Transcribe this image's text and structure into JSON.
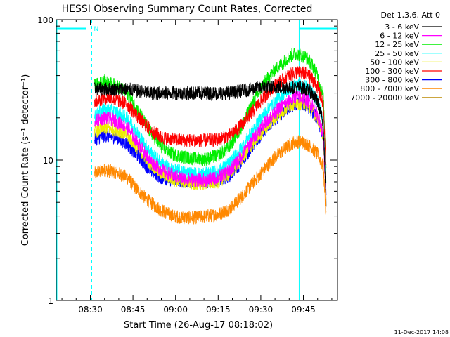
{
  "chart_data": {
    "type": "line",
    "title": "HESSI Observing Summary Count Rates, Corrected",
    "xlabel": "Start Time (26-Aug-17 08:18:02)",
    "ylabel": "Corrected Count Rate (s⁻¹ detector⁻¹)",
    "yscale": "log",
    "ylim": [
      1,
      100
    ],
    "xlim_min": [
      498,
      597
    ],
    "x_ticks": [
      {
        "min": 510,
        "label": "08:30"
      },
      {
        "min": 525,
        "label": "08:45"
      },
      {
        "min": 540,
        "label": "09:00"
      },
      {
        "min": 555,
        "label": "09:15"
      },
      {
        "min": 570,
        "label": "09:30"
      },
      {
        "min": 585,
        "label": "09:45"
      }
    ],
    "y_ticks": [
      {
        "value": 1,
        "label": "1"
      },
      {
        "value": 10,
        "label": "10"
      },
      {
        "value": 100,
        "label": "100"
      }
    ],
    "legend_header": "Det 1,3,6, Att 0",
    "legend_position": "right",
    "data_start_min": 511.5,
    "data_end_min": 593,
    "series": [
      {
        "name": "3 - 6 keV",
        "color": "#000000",
        "x": [
          511.5,
          515,
          519,
          523,
          527,
          531,
          535,
          539,
          543,
          547,
          551,
          555,
          559,
          563,
          567,
          571,
          575,
          579,
          581,
          582,
          584,
          586,
          588,
          590,
          592,
          593
        ],
        "y": [
          32,
          32,
          32,
          32,
          31,
          30,
          30,
          30,
          30,
          30,
          30,
          30,
          30,
          31,
          32,
          33,
          33,
          33,
          33,
          33,
          33,
          32,
          30,
          26,
          18,
          5
        ]
      },
      {
        "name": "6 - 12 keV",
        "color": "#ff00ff",
        "x": [
          511.5,
          515,
          519,
          523,
          527,
          531,
          535,
          539,
          543,
          547,
          551,
          555,
          559,
          563,
          567,
          571,
          575,
          579,
          581,
          582,
          584,
          586,
          588,
          590,
          592,
          593
        ],
        "y": [
          19,
          20,
          19,
          17,
          13,
          10,
          8.5,
          7.8,
          7.4,
          7.2,
          7.2,
          7.5,
          8.5,
          10.5,
          14,
          18,
          22,
          25.5,
          27,
          28,
          28,
          27,
          25,
          21,
          15,
          5
        ]
      },
      {
        "name": "12 - 25 keV",
        "color": "#00ee00",
        "x": [
          511.5,
          515,
          519,
          523,
          527,
          531,
          535,
          539,
          543,
          547,
          551,
          555,
          559,
          563,
          567,
          571,
          575,
          579,
          581,
          582,
          584,
          586,
          588,
          590,
          592,
          593
        ],
        "y": [
          34,
          36,
          34,
          30,
          22,
          16,
          12.5,
          11,
          10.5,
          10.2,
          10.2,
          10.8,
          12.5,
          17,
          25,
          35,
          44,
          52,
          56,
          57,
          56,
          54,
          48,
          40,
          28,
          9
        ]
      },
      {
        "name": "25 - 50 keV",
        "color": "#00ffff",
        "x": [
          511.5,
          515,
          519,
          523,
          527,
          531,
          535,
          539,
          543,
          547,
          551,
          555,
          559,
          563,
          567,
          571,
          575,
          579,
          581,
          582,
          584,
          586,
          588,
          590,
          592,
          593
        ],
        "y": [
          21,
          23,
          22,
          20,
          15,
          11.5,
          9.5,
          8.5,
          8.2,
          8,
          8,
          8.3,
          9.5,
          12,
          16,
          21,
          26,
          31,
          33,
          34,
          34,
          33,
          30,
          26,
          19,
          7
        ]
      },
      {
        "name": "50 - 100 keV",
        "color": "#eeee00",
        "x": [
          511.5,
          515,
          519,
          523,
          527,
          531,
          535,
          539,
          543,
          547,
          551,
          555,
          559,
          563,
          567,
          571,
          575,
          579,
          581,
          582,
          584,
          586,
          588,
          590,
          592,
          593
        ],
        "y": [
          16,
          17,
          16.5,
          15,
          12,
          9.5,
          8,
          7.3,
          7,
          6.8,
          6.8,
          7,
          8,
          10,
          13,
          16.5,
          20,
          23.5,
          25,
          25.5,
          25.5,
          25,
          23,
          20,
          15,
          6
        ]
      },
      {
        "name": "100 - 300 keV",
        "color": "#ff0000",
        "x": [
          511.5,
          515,
          519,
          523,
          527,
          531,
          535,
          539,
          543,
          547,
          551,
          555,
          559,
          563,
          567,
          571,
          575,
          579,
          581,
          582,
          584,
          586,
          588,
          590,
          592,
          593
        ],
        "y": [
          26,
          28,
          27,
          25,
          20,
          16.5,
          14.5,
          14,
          13.8,
          13.8,
          13.8,
          14,
          15,
          17.5,
          22,
          28,
          34,
          39,
          41,
          42,
          42,
          41,
          38,
          33,
          25,
          8
        ]
      },
      {
        "name": "300 - 800 keV",
        "color": "#0000ff",
        "x": [
          511.5,
          515,
          519,
          523,
          527,
          531,
          535,
          539,
          543,
          547,
          551,
          555,
          559,
          563,
          567,
          571,
          575,
          579,
          581,
          582,
          584,
          586,
          588,
          590,
          592,
          593
        ],
        "y": [
          14,
          15,
          14.5,
          13,
          10.5,
          8.5,
          7.5,
          7.2,
          7.1,
          7,
          7,
          7.2,
          7.8,
          9.5,
          12.5,
          16,
          19.5,
          23,
          24.5,
          25,
          25,
          24.5,
          22.5,
          19.5,
          15,
          6
        ]
      },
      {
        "name": "800 - 7000 keV",
        "color": "#ff8800",
        "x": [
          511.5,
          515,
          519,
          523,
          527,
          531,
          535,
          539,
          543,
          547,
          551,
          555,
          559,
          563,
          567,
          571,
          575,
          579,
          581,
          582,
          584,
          586,
          588,
          590,
          592,
          593
        ],
        "y": [
          8,
          8.5,
          8.2,
          7.5,
          6,
          5,
          4.4,
          4,
          3.9,
          3.9,
          4,
          4.1,
          4.5,
          5.4,
          6.8,
          8.5,
          10.5,
          12.3,
          13.2,
          13.5,
          13.5,
          13.2,
          12.2,
          11,
          9,
          4
        ]
      },
      {
        "name": "7000 - 20000 keV",
        "color": "#bb8800",
        "x": [],
        "y": []
      }
    ],
    "annotations": {
      "night_markers_min": [
        498,
        510.5,
        583.5,
        598
      ],
      "saa_markers_min": [],
      "spacecraft_night_label": "N"
    }
  },
  "footer_date": "11-Dec-2017 14:08"
}
